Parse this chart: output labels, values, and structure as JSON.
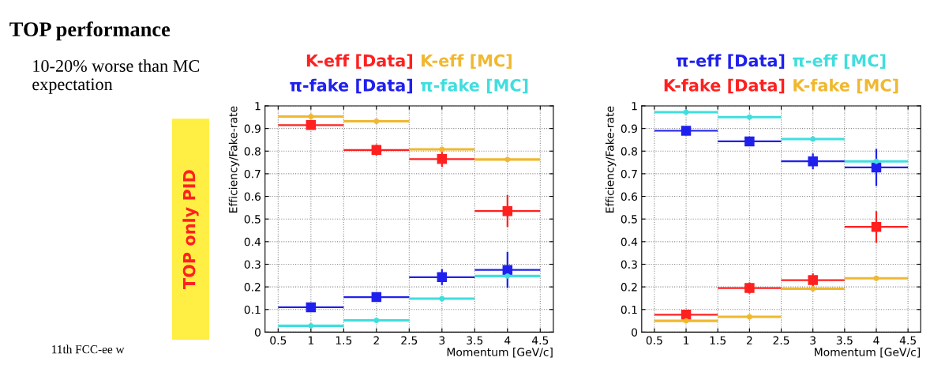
{
  "chart_data": [
    {
      "type": "scatter",
      "xlabel": "Momentum [GeV/c]",
      "ylabel": "Efficiency/Fake-rate",
      "xlim": [
        0.3,
        4.7
      ],
      "xticks": [
        0.5,
        1,
        1.5,
        2,
        2.5,
        3,
        3.5,
        4,
        4.5
      ],
      "ylim": [
        0,
        1
      ],
      "yticks": [
        0,
        0.1,
        0.2,
        0.3,
        0.4,
        0.5,
        0.6,
        0.7,
        0.8,
        0.9,
        1
      ],
      "grid": true,
      "legend": "top",
      "annotations": [
        "TOP performance",
        "10-20% worse than MC expectation",
        "TOP only PID",
        "11th FCC-ee w"
      ],
      "series": [
        {
          "name": "K-eff [Data]",
          "color": "#ff2020",
          "marker": "square",
          "x": [
            1,
            2,
            3,
            4
          ],
          "values": [
            0.915,
            0.805,
            0.765,
            0.535
          ],
          "errors": [
            0.02,
            0.025,
            0.035,
            0.07
          ],
          "xerrors": [
            0.5,
            0.5,
            0.5,
            0.5
          ]
        },
        {
          "name": "K-eff [MC]",
          "color": "#f0b830",
          "marker": "circle",
          "x": [
            1,
            2,
            3,
            4
          ],
          "values": [
            0.953,
            0.932,
            0.808,
            0.763
          ],
          "xerrors": [
            0.5,
            0.5,
            0.5,
            0.5
          ]
        },
        {
          "name": "π-fake [Data]",
          "color": "#2020ee",
          "marker": "square",
          "x": [
            1,
            2,
            3,
            4
          ],
          "values": [
            0.11,
            0.155,
            0.243,
            0.275
          ],
          "errors": [
            0.02,
            0.02,
            0.035,
            0.08
          ],
          "xerrors": [
            0.5,
            0.5,
            0.5,
            0.5
          ]
        },
        {
          "name": "π-fake [MC]",
          "color": "#40dede",
          "marker": "circle",
          "x": [
            1,
            2,
            3,
            4
          ],
          "values": [
            0.028,
            0.052,
            0.148,
            0.248
          ],
          "xerrors": [
            0.5,
            0.5,
            0.5,
            0.5
          ]
        }
      ]
    },
    {
      "type": "scatter",
      "xlabel": "Momentum [GeV/c]",
      "ylabel": "Efficiency/Fake-rate",
      "xlim": [
        0.3,
        4.7
      ],
      "xticks": [
        0.5,
        1,
        1.5,
        2,
        2.5,
        3,
        3.5,
        4,
        4.5
      ],
      "ylim": [
        0,
        1
      ],
      "yticks": [
        0,
        0.1,
        0.2,
        0.3,
        0.4,
        0.5,
        0.6,
        0.7,
        0.8,
        0.9,
        1
      ],
      "grid": true,
      "legend": "top",
      "series": [
        {
          "name": "π-eff [Data]",
          "color": "#2020ee",
          "marker": "square",
          "x": [
            1,
            2,
            3,
            4
          ],
          "values": [
            0.89,
            0.843,
            0.755,
            0.728
          ],
          "errors": [
            0.02,
            0.02,
            0.035,
            0.082
          ],
          "xerrors": [
            0.5,
            0.5,
            0.5,
            0.5
          ]
        },
        {
          "name": "π-eff [MC]",
          "color": "#40dede",
          "marker": "circle",
          "x": [
            1,
            2,
            3,
            4
          ],
          "values": [
            0.972,
            0.95,
            0.853,
            0.755
          ],
          "xerrors": [
            0.5,
            0.5,
            0.5,
            0.5
          ]
        },
        {
          "name": "K-fake [Data]",
          "color": "#ff2020",
          "marker": "square",
          "x": [
            1,
            2,
            3,
            4
          ],
          "values": [
            0.077,
            0.195,
            0.23,
            0.465
          ],
          "errors": [
            0.02,
            0.025,
            0.03,
            0.07
          ],
          "xerrors": [
            0.5,
            0.5,
            0.5,
            0.5
          ]
        },
        {
          "name": "K-fake [MC]",
          "color": "#f0b830",
          "marker": "circle",
          "x": [
            1,
            2,
            3,
            4
          ],
          "values": [
            0.05,
            0.068,
            0.192,
            0.238
          ],
          "xerrors": [
            0.5,
            0.5,
            0.5,
            0.5
          ]
        }
      ]
    }
  ]
}
